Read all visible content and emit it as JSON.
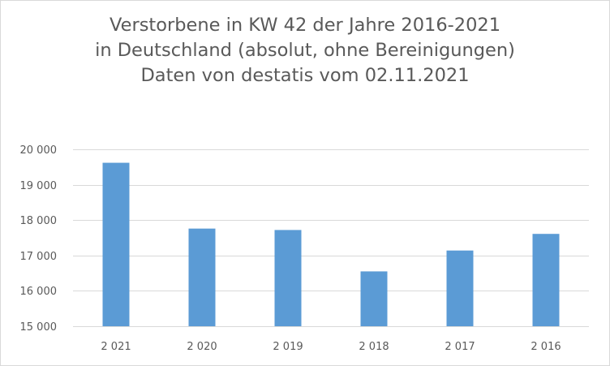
{
  "chart_data": {
    "type": "bar",
    "title": [
      "Verstorbene in KW 42 der Jahre 2016-2021",
      "in Deutschland (absolut, ohne Bereinigungen)",
      "Daten von destatis vom 02.11.2021"
    ],
    "categories": [
      "2 021",
      "2 020",
      "2 019",
      "2 018",
      "2 017",
      "2 016"
    ],
    "values": [
      19620,
      17760,
      17720,
      16550,
      17140,
      17610
    ],
    "ylim": [
      15000,
      20000
    ],
    "yticks": [
      15000,
      16000,
      17000,
      18000,
      19000,
      20000
    ],
    "ytick_labels": [
      "15 000",
      "16 000",
      "17 000",
      "18 000",
      "19 000",
      "20 000"
    ],
    "xlabel": "",
    "ylabel": "",
    "grid": true,
    "legend": "none",
    "colors": {
      "bar": "#5b9bd5",
      "grid": "#d9d9d9",
      "text": "#595959"
    }
  }
}
